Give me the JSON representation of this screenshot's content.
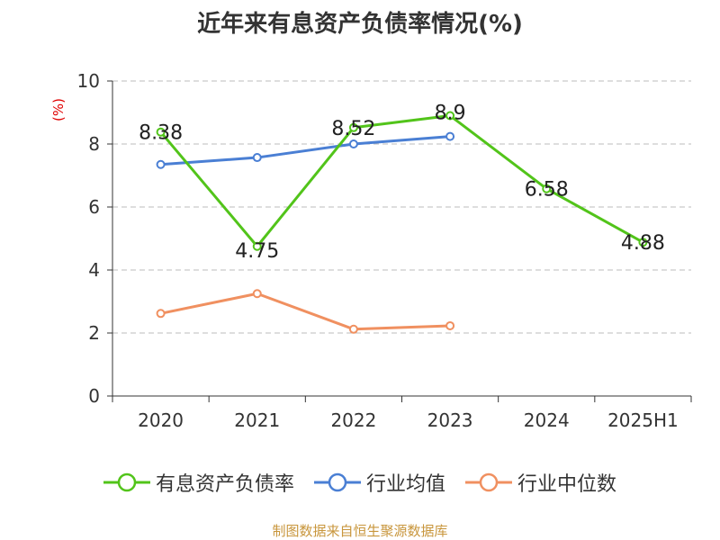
{
  "title": "近年来有息资产负债率情况(%)",
  "unit_label": "(%)",
  "source": "制图数据来自恒生聚源数据库",
  "colors": {
    "series1": "#52c41a",
    "series2": "#4a7fd4",
    "series3": "#f09060",
    "grid": "#bbbbbb",
    "axis": "#333333",
    "text": "#333333"
  },
  "chart_data": {
    "type": "line",
    "categories": [
      "2020",
      "2021",
      "2022",
      "2023",
      "2024",
      "2025H1"
    ],
    "y_ticks": [
      "0",
      "2",
      "4",
      "6",
      "8",
      "10"
    ],
    "ylim": [
      0,
      10
    ],
    "grid": true,
    "legend_position": "bottom",
    "series": [
      {
        "name": "有息资产负债率",
        "values": [
          8.38,
          4.75,
          8.52,
          8.9,
          6.58,
          4.88
        ],
        "labels": [
          "8.38",
          "4.75",
          "8.52",
          "8.9",
          "6.58",
          "4.88"
        ],
        "color": "#52c41a"
      },
      {
        "name": "行业均值",
        "values": [
          7.35,
          7.57,
          8.0,
          8.24,
          null,
          null
        ],
        "color": "#4a7fd4"
      },
      {
        "name": "行业中位数",
        "values": [
          2.62,
          3.25,
          2.12,
          2.23,
          null,
          null
        ],
        "color": "#f09060"
      }
    ]
  }
}
